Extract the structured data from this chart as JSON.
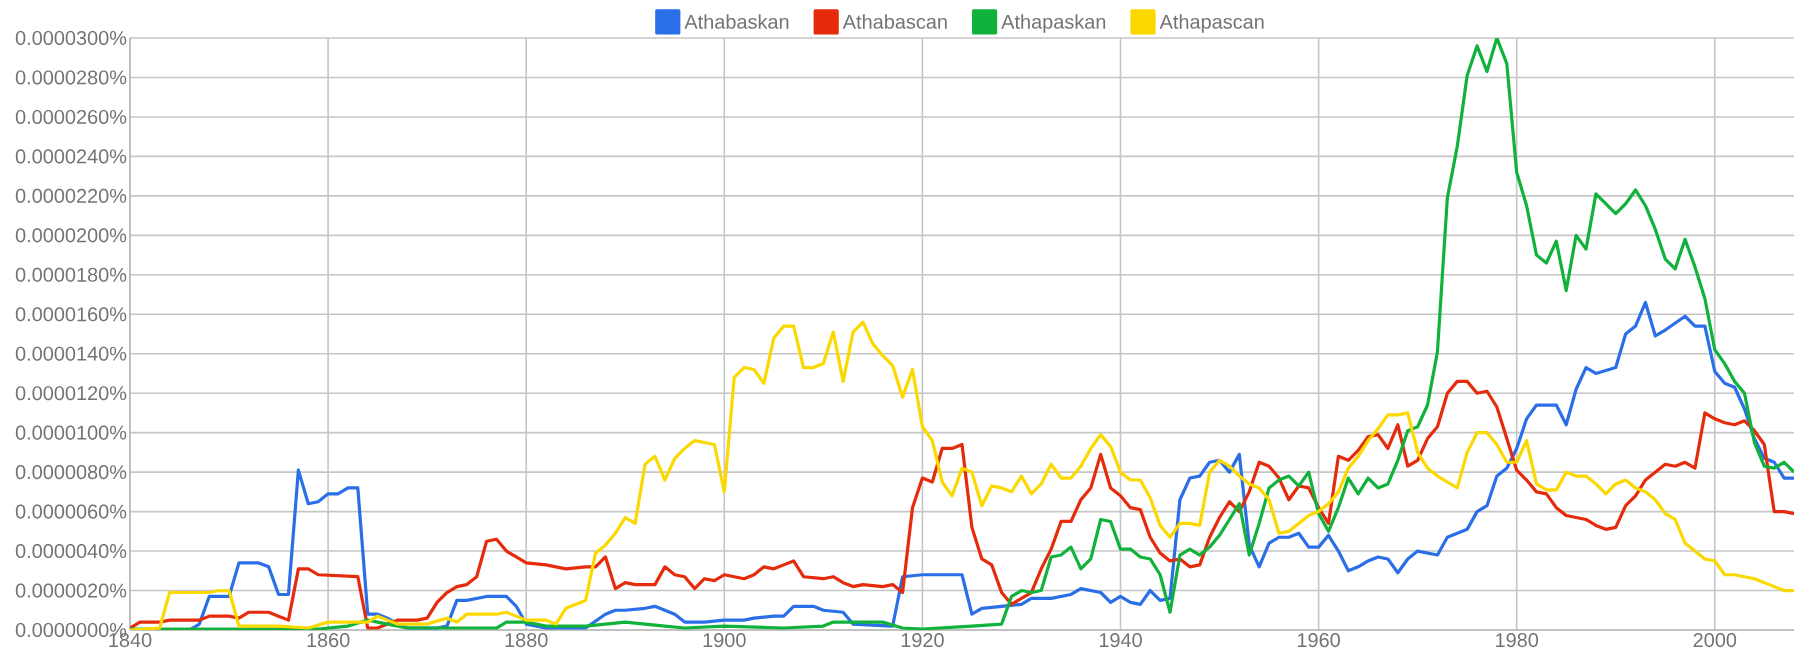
{
  "chart_data": {
    "type": "line",
    "xlim": [
      1840,
      2008
    ],
    "xticks": [
      1840,
      1860,
      1880,
      1900,
      1920,
      1940,
      1960,
      1980,
      2000
    ],
    "ylim": [
      0,
      3e-05
    ],
    "yticks": [
      {
        "value": 0,
        "label": "0.0000000%"
      },
      {
        "value": 2e-06,
        "label": "0.0000020%"
      },
      {
        "value": 4e-06,
        "label": "0.0000040%"
      },
      {
        "value": 6e-06,
        "label": "0.0000060%"
      },
      {
        "value": 8e-06,
        "label": "0.0000080%"
      },
      {
        "value": 1e-05,
        "label": "0.0000100%"
      },
      {
        "value": 1.2e-05,
        "label": "0.0000120%"
      },
      {
        "value": 1.4e-05,
        "label": "0.0000140%"
      },
      {
        "value": 1.6e-05,
        "label": "0.0000160%"
      },
      {
        "value": 1.8e-05,
        "label": "0.0000180%"
      },
      {
        "value": 2e-05,
        "label": "0.0000200%"
      },
      {
        "value": 2.2e-05,
        "label": "0.0000220%"
      },
      {
        "value": 2.4e-05,
        "label": "0.0000240%"
      },
      {
        "value": 2.6e-05,
        "label": "0.0000260%"
      },
      {
        "value": 2.8e-05,
        "label": "0.0000280%"
      },
      {
        "value": 3e-05,
        "label": "0.0000300%"
      }
    ],
    "grid": true,
    "legend": "top",
    "line_style": "solid",
    "series": [
      {
        "name": "Athabaskan",
        "color": "#2a6ee8",
        "x": [
          1840,
          1846,
          1847,
          1848,
          1850,
          1851,
          1853,
          1854,
          1855,
          1856,
          1857,
          1858,
          1859,
          1860,
          1861,
          1862,
          1863,
          1864,
          1865,
          1866,
          1867,
          1868,
          1871,
          1872,
          1873,
          1874,
          1876,
          1878,
          1879,
          1880,
          1882,
          1886,
          1888,
          1889,
          1890,
          1892,
          1893,
          1895,
          1896,
          1898,
          1900,
          1902,
          1903,
          1905,
          1906,
          1907,
          1909,
          1910,
          1912,
          1913,
          1917,
          1918,
          1920,
          1924,
          1925,
          1926,
          1928,
          1930,
          1931,
          1933,
          1935,
          1936,
          1938,
          1939,
          1940,
          1941,
          1942,
          1943,
          1944,
          1945,
          1946,
          1947,
          1948,
          1949,
          1950,
          1951,
          1952,
          1953,
          1954,
          1955,
          1956,
          1957,
          1958,
          1959,
          1960,
          1961,
          1962,
          1963,
          1964,
          1965,
          1966,
          1967,
          1968,
          1969,
          1970,
          1972,
          1973,
          1975,
          1976,
          1977,
          1978,
          1979,
          1980,
          1981,
          1982,
          1984,
          1985,
          1986,
          1987,
          1988,
          1990,
          1991,
          1992,
          1993,
          1994,
          1995,
          1997,
          1998,
          1999,
          2000,
          2001,
          2002,
          2003,
          2004,
          2005,
          2006,
          2007,
          2008
        ],
        "values": [
          0,
          0,
          3e-07,
          1.7e-06,
          1.7e-06,
          3.4e-06,
          3.4e-06,
          3.2e-06,
          1.8e-06,
          1.8e-06,
          8.1e-06,
          6.4e-06,
          6.5e-06,
          6.9e-06,
          6.9e-06,
          7.2e-06,
          7.2e-06,
          8e-07,
          8e-07,
          6e-07,
          3e-07,
          1e-07,
          1e-07,
          2e-07,
          1.5e-06,
          1.5e-06,
          1.7e-06,
          1.7e-06,
          1.2e-06,
          3e-07,
          1e-07,
          1e-07,
          8e-07,
          1e-06,
          1e-06,
          1.1e-06,
          1.2e-06,
          8e-07,
          4e-07,
          4e-07,
          5e-07,
          5e-07,
          6e-07,
          7e-07,
          7e-07,
          1.2e-06,
          1.2e-06,
          1e-06,
          9e-07,
          3e-07,
          2e-07,
          2.7e-06,
          2.8e-06,
          2.8e-06,
          8e-07,
          1.1e-06,
          1.2e-06,
          1.3e-06,
          1.6e-06,
          1.6e-06,
          1.8e-06,
          2.1e-06,
          1.9e-06,
          1.4e-06,
          1.7e-06,
          1.4e-06,
          1.3e-06,
          2e-06,
          1.5e-06,
          1.6e-06,
          6.6e-06,
          7.7e-06,
          7.8e-06,
          8.5e-06,
          8.6e-06,
          8e-06,
          8.9e-06,
          4.3e-06,
          3.2e-06,
          4.4e-06,
          4.7e-06,
          4.7e-06,
          4.9e-06,
          4.2e-06,
          4.2e-06,
          4.8e-06,
          4e-06,
          3e-06,
          3.2e-06,
          3.5e-06,
          3.7e-06,
          3.6e-06,
          2.9e-06,
          3.6e-06,
          4e-06,
          3.8e-06,
          4.7e-06,
          5.1e-06,
          6e-06,
          6.3e-06,
          7.8e-06,
          8.2e-06,
          9.2e-06,
          1.07e-05,
          1.14e-05,
          1.14e-05,
          1.04e-05,
          1.22e-05,
          1.33e-05,
          1.3e-05,
          1.33e-05,
          1.5e-05,
          1.54e-05,
          1.66e-05,
          1.49e-05,
          1.52e-05,
          1.59e-05,
          1.54e-05,
          1.54e-05,
          1.31e-05,
          1.25e-05,
          1.23e-05,
          1.12e-05,
          9.7e-06,
          8.7e-06,
          8.5e-06,
          7.7e-06,
          7.7e-06
        ]
      },
      {
        "name": "Athabascan",
        "color": "#e52b0c",
        "x": [
          1840,
          1841,
          1843,
          1844,
          1847,
          1848,
          1850,
          1851,
          1852,
          1854,
          1855,
          1856,
          1857,
          1858,
          1859,
          1863,
          1864,
          1865,
          1866,
          1867,
          1869,
          1870,
          1871,
          1872,
          1873,
          1874,
          1875,
          1876,
          1877,
          1878,
          1879,
          1880,
          1882,
          1884,
          1886,
          1887,
          1888,
          1889,
          1890,
          1891,
          1893,
          1894,
          1895,
          1896,
          1897,
          1898,
          1899,
          1900,
          1901,
          1902,
          1903,
          1904,
          1905,
          1906,
          1907,
          1908,
          1910,
          1911,
          1912,
          1913,
          1914,
          1916,
          1917,
          1918,
          1919,
          1920,
          1921,
          1922,
          1923,
          1924,
          1925,
          1926,
          1927,
          1928,
          1929,
          1930,
          1931,
          1932,
          1933,
          1934,
          1935,
          1936,
          1937,
          1938,
          1939,
          1940,
          1941,
          1942,
          1943,
          1944,
          1945,
          1946,
          1947,
          1948,
          1949,
          1950,
          1951,
          1952,
          1953,
          1954,
          1955,
          1956,
          1957,
          1958,
          1959,
          1960,
          1961,
          1962,
          1963,
          1964,
          1965,
          1966,
          1967,
          1968,
          1969,
          1970,
          1971,
          1972,
          1973,
          1974,
          1975,
          1976,
          1977,
          1978,
          1979,
          1980,
          1981,
          1982,
          1983,
          1984,
          1985,
          1986,
          1987,
          1988,
          1989,
          1990,
          1991,
          1992,
          1993,
          1994,
          1995,
          1996,
          1997,
          1998,
          1999,
          2000,
          2001,
          2002,
          2003,
          2004,
          2005,
          2006,
          2007,
          2008
        ],
        "values": [
          1e-07,
          4e-07,
          4e-07,
          5e-07,
          5e-07,
          7e-07,
          7e-07,
          6e-07,
          9e-07,
          9e-07,
          7e-07,
          5e-07,
          3.1e-06,
          3.1e-06,
          2.8e-06,
          2.7e-06,
          1e-07,
          1e-07,
          3e-07,
          5e-07,
          5e-07,
          6e-07,
          1.4e-06,
          1.9e-06,
          2.2e-06,
          2.3e-06,
          2.7e-06,
          4.5e-06,
          4.6e-06,
          4e-06,
          3.7e-06,
          3.4e-06,
          3.3e-06,
          3.1e-06,
          3.2e-06,
          3.2e-06,
          3.7e-06,
          2.1e-06,
          2.4e-06,
          2.3e-06,
          2.3e-06,
          3.2e-06,
          2.8e-06,
          2.7e-06,
          2.1e-06,
          2.6e-06,
          2.5e-06,
          2.8e-06,
          2.7e-06,
          2.6e-06,
          2.8e-06,
          3.2e-06,
          3.1e-06,
          3.3e-06,
          3.5e-06,
          2.7e-06,
          2.6e-06,
          2.7e-06,
          2.4e-06,
          2.2e-06,
          2.3e-06,
          2.2e-06,
          2.3e-06,
          1.9e-06,
          6.2e-06,
          7.7e-06,
          7.5e-06,
          9.2e-06,
          9.2e-06,
          9.4e-06,
          5.2e-06,
          3.6e-06,
          3.3e-06,
          1.9e-06,
          1.3e-06,
          1.6e-06,
          1.9e-06,
          3.1e-06,
          4.1e-06,
          5.5e-06,
          5.5e-06,
          6.6e-06,
          7.2e-06,
          8.9e-06,
          7.2e-06,
          6.8e-06,
          6.2e-06,
          6.1e-06,
          4.7e-06,
          3.9e-06,
          3.5e-06,
          3.6e-06,
          3.2e-06,
          3.3e-06,
          4.7e-06,
          5.7e-06,
          6.5e-06,
          6e-06,
          7e-06,
          8.5e-06,
          8.3e-06,
          7.7e-06,
          6.6e-06,
          7.3e-06,
          7.2e-06,
          6.2e-06,
          5.4e-06,
          8.8e-06,
          8.6e-06,
          9.1e-06,
          9.8e-06,
          9.9e-06,
          9.2e-06,
          1.04e-05,
          8.3e-06,
          8.6e-06,
          9.7e-06,
          1.03e-05,
          1.2e-05,
          1.26e-05,
          1.26e-05,
          1.2e-05,
          1.21e-05,
          1.13e-05,
          9.7e-06,
          8.1e-06,
          7.6e-06,
          7e-06,
          6.9e-06,
          6.2e-06,
          5.8e-06,
          5.7e-06,
          5.6e-06,
          5.3e-06,
          5.1e-06,
          5.2e-06,
          6.3e-06,
          6.8e-06,
          7.6e-06,
          8e-06,
          8.4e-06,
          8.3e-06,
          8.5e-06,
          8.2e-06,
          1.1e-05,
          1.07e-05,
          1.05e-05,
          1.04e-05,
          1.06e-05,
          1.01e-05,
          9.4e-06,
          6e-06,
          6e-06,
          5.9e-06
        ]
      },
      {
        "name": "Athapaskan",
        "color": "#10b23c",
        "x": [
          1840,
          1859,
          1862,
          1864,
          1866,
          1868,
          1877,
          1878,
          1880,
          1882,
          1886,
          1888,
          1890,
          1894,
          1896,
          1900,
          1906,
          1910,
          1911,
          1914,
          1916,
          1918,
          1920,
          1925,
          1928,
          1929,
          1930,
          1931,
          1932,
          1933,
          1934,
          1935,
          1936,
          1937,
          1938,
          1939,
          1940,
          1941,
          1942,
          1943,
          1944,
          1945,
          1946,
          1947,
          1948,
          1949,
          1950,
          1951,
          1952,
          1953,
          1954,
          1955,
          1956,
          1957,
          1958,
          1959,
          1960,
          1961,
          1962,
          1963,
          1964,
          1965,
          1966,
          1967,
          1968,
          1969,
          1970,
          1971,
          1972,
          1973,
          1974,
          1975,
          1976,
          1977,
          1978,
          1979,
          1980,
          1981,
          1982,
          1983,
          1984,
          1985,
          1986,
          1987,
          1988,
          1989,
          1990,
          1991,
          1992,
          1993,
          1994,
          1995,
          1996,
          1997,
          1998,
          1999,
          2000,
          2001,
          2002,
          2003,
          2004,
          2005,
          2006,
          2007,
          2008
        ],
        "values": [
          5e-08,
          5e-08,
          2e-07,
          5e-07,
          3e-07,
          1e-07,
          1e-07,
          4e-07,
          4e-07,
          2e-07,
          2e-07,
          3e-07,
          4e-07,
          2e-07,
          1e-07,
          2e-07,
          1e-07,
          2e-07,
          4e-07,
          4e-07,
          4e-07,
          1e-07,
          5e-08,
          2e-07,
          3e-07,
          1.7e-06,
          2e-06,
          1.9e-06,
          2e-06,
          3.7e-06,
          3.8e-06,
          4.2e-06,
          3.1e-06,
          3.6e-06,
          5.6e-06,
          5.5e-06,
          4.1e-06,
          4.1e-06,
          3.7e-06,
          3.6e-06,
          2.8e-06,
          9e-07,
          3.8e-06,
          4.1e-06,
          3.8e-06,
          4.2e-06,
          4.8e-06,
          5.6e-06,
          6.4e-06,
          3.8e-06,
          5.4e-06,
          7.2e-06,
          7.6e-06,
          7.8e-06,
          7.3e-06,
          8e-06,
          5.9e-06,
          5e-06,
          6.2e-06,
          7.7e-06,
          6.9e-06,
          7.7e-06,
          7.2e-06,
          7.4e-06,
          8.6e-06,
          1.01e-05,
          1.03e-05,
          1.14e-05,
          1.41e-05,
          2.19e-05,
          2.45e-05,
          2.81e-05,
          2.96e-05,
          2.83e-05,
          3e-05,
          2.87e-05,
          2.32e-05,
          2.15e-05,
          1.9e-05,
          1.86e-05,
          1.97e-05,
          1.72e-05,
          2e-05,
          1.93e-05,
          2.21e-05,
          2.16e-05,
          2.11e-05,
          2.16e-05,
          2.23e-05,
          2.15e-05,
          2.03e-05,
          1.88e-05,
          1.83e-05,
          1.98e-05,
          1.84e-05,
          1.68e-05,
          1.42e-05,
          1.35e-05,
          1.26e-05,
          1.2e-05,
          9.5e-06,
          8.3e-06,
          8.2e-06,
          8.5e-06,
          8e-06
        ]
      },
      {
        "name": "Athapascan",
        "color": "#fbd800",
        "x": [
          1840,
          1843,
          1844,
          1848,
          1849,
          1850,
          1851,
          1855,
          1858,
          1860,
          1864,
          1865,
          1866,
          1867,
          1870,
          1872,
          1873,
          1874,
          1877,
          1878,
          1880,
          1882,
          1883,
          1884,
          1886,
          1887,
          1888,
          1889,
          1890,
          1891,
          1892,
          1893,
          1894,
          1895,
          1896,
          1897,
          1898,
          1899,
          1900,
          1901,
          1902,
          1903,
          1904,
          1905,
          1906,
          1907,
          1908,
          1909,
          1910,
          1911,
          1912,
          1913,
          1914,
          1915,
          1916,
          1917,
          1918,
          1919,
          1920,
          1921,
          1922,
          1923,
          1924,
          1925,
          1926,
          1927,
          1928,
          1929,
          1930,
          1931,
          1932,
          1933,
          1934,
          1935,
          1936,
          1937,
          1938,
          1939,
          1940,
          1941,
          1942,
          1943,
          1944,
          1945,
          1946,
          1947,
          1948,
          1949,
          1950,
          1951,
          1952,
          1953,
          1954,
          1955,
          1956,
          1957,
          1958,
          1959,
          1960,
          1961,
          1962,
          1963,
          1964,
          1965,
          1966,
          1967,
          1968,
          1969,
          1970,
          1971,
          1972,
          1973,
          1974,
          1975,
          1976,
          1977,
          1978,
          1979,
          1980,
          1981,
          1982,
          1983,
          1984,
          1985,
          1986,
          1987,
          1988,
          1989,
          1990,
          1991,
          1992,
          1993,
          1994,
          1995,
          1996,
          1997,
          1998,
          1999,
          2000,
          2001,
          2002,
          2003,
          2004,
          2005,
          2006,
          2007,
          2008
        ],
        "values": [
          0,
          1e-07,
          1.9e-06,
          1.9e-06,
          2e-06,
          2e-06,
          2e-07,
          2e-07,
          1e-07,
          4e-07,
          4e-07,
          7e-07,
          5e-07,
          3e-07,
          3e-07,
          6e-07,
          4e-07,
          8e-07,
          8e-07,
          9e-07,
          5e-07,
          5e-07,
          3e-07,
          1.1e-06,
          1.5e-06,
          3.9e-06,
          4.3e-06,
          4.9e-06,
          5.7e-06,
          5.4e-06,
          8.4e-06,
          8.8e-06,
          7.6e-06,
          8.7e-06,
          9.2e-06,
          9.6e-06,
          9.5e-06,
          9.4e-06,
          7e-06,
          1.28e-05,
          1.33e-05,
          1.32e-05,
          1.25e-05,
          1.48e-05,
          1.54e-05,
          1.54e-05,
          1.33e-05,
          1.33e-05,
          1.35e-05,
          1.51e-05,
          1.26e-05,
          1.51e-05,
          1.56e-05,
          1.45e-05,
          1.39e-05,
          1.34e-05,
          1.18e-05,
          1.32e-05,
          1.03e-05,
          9.6e-06,
          7.5e-06,
          6.8e-06,
          8.2e-06,
          8e-06,
          6.3e-06,
          7.3e-06,
          7.2e-06,
          7e-06,
          7.8e-06,
          6.9e-06,
          7.4e-06,
          8.4e-06,
          7.7e-06,
          7.7e-06,
          8.3e-06,
          9.2e-06,
          9.9e-06,
          9.3e-06,
          8e-06,
          7.6e-06,
          7.6e-06,
          6.7e-06,
          5.3e-06,
          4.7e-06,
          5.4e-06,
          5.4e-06,
          5.3e-06,
          8e-06,
          8.6e-06,
          8.3e-06,
          7.8e-06,
          7.4e-06,
          7.2e-06,
          6.6e-06,
          4.9e-06,
          5e-06,
          5.4e-06,
          5.8e-06,
          6e-06,
          6.4e-06,
          7e-06,
          8.2e-06,
          8.8e-06,
          9.6e-06,
          1.02e-05,
          1.09e-05,
          1.09e-05,
          1.1e-05,
          9e-06,
          8.2e-06,
          7.8e-06,
          7.5e-06,
          7.2e-06,
          9e-06,
          1e-05,
          1e-05,
          9.4e-06,
          8.5e-06,
          8.5e-06,
          9.6e-06,
          7.4e-06,
          7.1e-06,
          7.1e-06,
          8e-06,
          7.8e-06,
          7.8e-06,
          7.4e-06,
          6.9e-06,
          7.4e-06,
          7.6e-06,
          7.2e-06,
          7e-06,
          6.6e-06,
          5.9e-06,
          5.6e-06,
          4.4e-06,
          4e-06,
          3.6e-06,
          3.5e-06,
          2.8e-06,
          2.8e-06,
          2.7e-06,
          2.6e-06,
          2.4e-06,
          2.2e-06,
          2e-06,
          2e-06
        ]
      }
    ]
  }
}
